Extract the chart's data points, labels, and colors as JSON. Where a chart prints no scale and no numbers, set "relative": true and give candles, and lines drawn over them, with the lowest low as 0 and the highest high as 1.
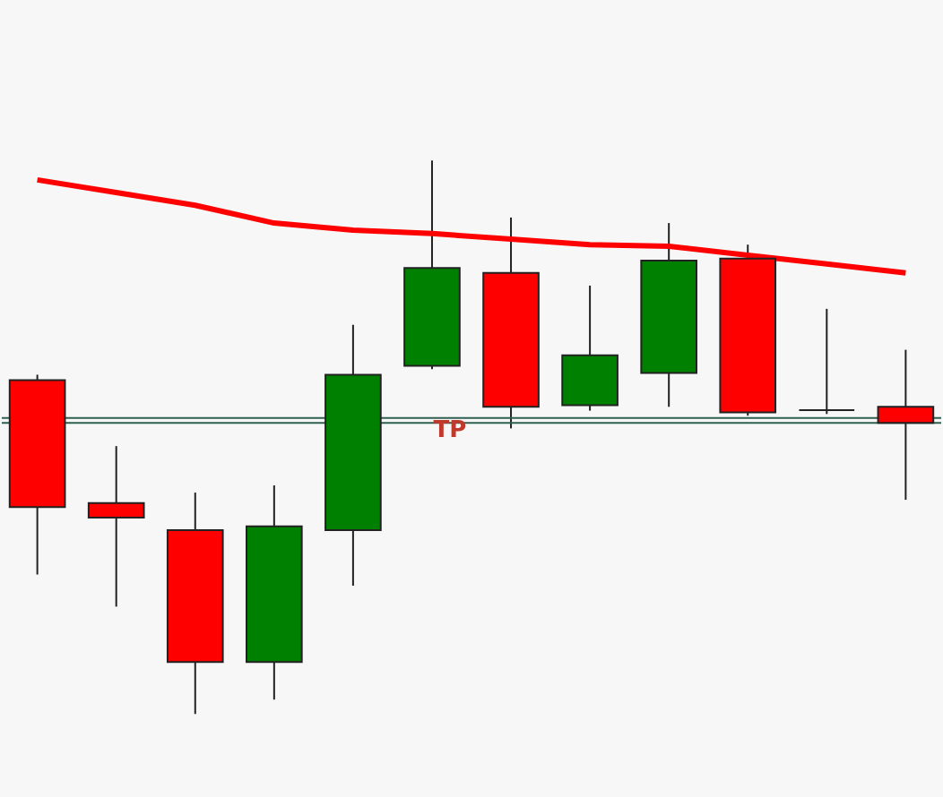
{
  "chart_data": {
    "type": "candlestick",
    "relative": true,
    "categories": [
      null,
      null,
      null,
      null,
      null,
      null,
      null,
      null,
      null,
      null,
      null,
      null
    ],
    "ohlc": [
      [
        0.603,
        0.613,
        0.252,
        0.374
      ],
      [
        0.381,
        0.484,
        0.194,
        0.355
      ],
      [
        0.332,
        0.4,
        0,
        0.094
      ],
      [
        0.094,
        0.413,
        0.026,
        0.339
      ],
      [
        0.332,
        0.703,
        0.232,
        0.613
      ],
      [
        0.629,
        1,
        0.623,
        0.806
      ],
      [
        0.797,
        0.897,
        0.516,
        0.555
      ],
      [
        0.558,
        0.774,
        0.548,
        0.648
      ],
      [
        0.616,
        0.887,
        0.555,
        0.819
      ],
      [
        0.823,
        0.848,
        0.539,
        0.545
      ],
      [
        0.549,
        0.732,
        0.542,
        0.549
      ],
      [
        0.555,
        0.658,
        0.387,
        0.526
      ]
    ],
    "colors": [
      "#ff0000",
      "#ff0000",
      "#ff0000",
      "#008000",
      "#008000",
      "#008000",
      "#ff0000",
      "#008000",
      "#008000",
      "#ff0000",
      "#222222",
      "#ff0000"
    ],
    "series": [
      {
        "type": "line",
        "color": "#ff0000",
        "values": [
          0.965,
          0.942,
          0.919,
          0.887,
          0.874,
          0.868,
          0.858,
          0.848,
          0.845,
          0.829,
          0.813,
          0.797
        ]
      }
    ],
    "ref_lines": [
      {
        "axis": "y",
        "value": 0.535,
        "color": "#2f5f4f"
      },
      {
        "axis": "y",
        "value": 0.526,
        "color": "#2f5f4f"
      }
    ],
    "annotations": [
      "TP"
    ]
  }
}
